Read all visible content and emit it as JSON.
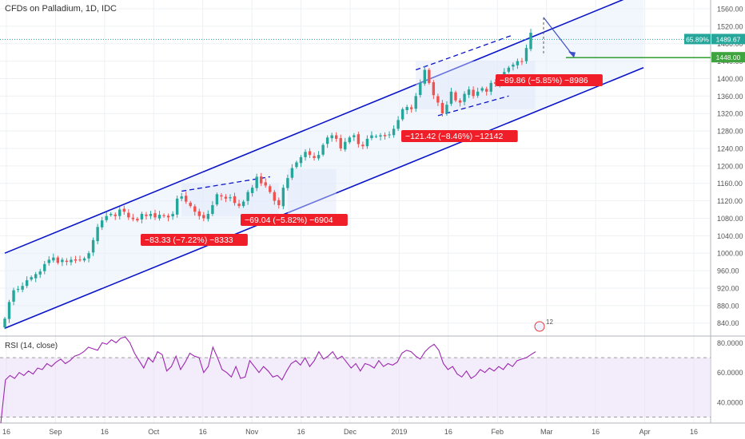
{
  "chart_title": "CFDs on Palladium, 1D, IDC",
  "rsi_title": "RSI (14, close)",
  "colors": {
    "up": "#26a69a",
    "down": "#ef5350",
    "channel": "#0a14c8",
    "rsi_line": "#9c27b0",
    "rsi_band": "#e9ddf6",
    "label_bg": "#f01e28"
  },
  "chart_data": [
    {
      "type": "candlestick",
      "yticks": [
        840,
        880,
        920,
        960,
        1000,
        1040,
        1080,
        1120,
        1160,
        1200,
        1240,
        1280,
        1320,
        1360,
        1400,
        1440,
        1480,
        1520,
        1560
      ],
      "ylim": [
        812,
        1580
      ],
      "x_tick_labels": [
        "16",
        "Sep",
        "16",
        "Oct",
        "16",
        "Nov",
        "16",
        "Dec",
        "2019",
        "16",
        "Feb",
        "Mar",
        "16",
        "Apr",
        "16"
      ],
      "price_markers": [
        {
          "value": 1489.67,
          "text": "1489.67",
          "change": "65.89%"
        },
        {
          "value": 1448.0,
          "text": "1448.00"
        }
      ],
      "measure_labels": [
        {
          "text": "−83.33 (−7.22%) −8333",
          "anchor_price": 1052
        },
        {
          "text": "−69.04 (−5.82%) −6904",
          "anchor_price": 1092
        },
        {
          "text": "−121.42 (−8.46%) −12142",
          "anchor_price": 1297
        },
        {
          "text": "−89.86 (−5.85%) −8986",
          "anchor_price": 1418
        }
      ],
      "events_badge": "12",
      "closes": [
        850,
        888,
        915,
        918,
        925,
        938,
        945,
        952,
        958,
        975,
        985,
        990,
        978,
        985,
        980,
        985,
        983,
        985,
        988,
        1000,
        1030,
        1060,
        1075,
        1085,
        1090,
        1085,
        1100,
        1095,
        1082,
        1078,
        1075,
        1090,
        1085,
        1090,
        1082,
        1088,
        1085,
        1082,
        1090,
        1125,
        1130,
        1118,
        1108,
        1095,
        1085,
        1080,
        1090,
        1110,
        1135,
        1130,
        1125,
        1128,
        1115,
        1108,
        1118,
        1140,
        1150,
        1175,
        1160,
        1155,
        1140,
        1120,
        1110,
        1150,
        1172,
        1195,
        1208,
        1220,
        1232,
        1225,
        1218,
        1225,
        1248,
        1265,
        1270,
        1262,
        1240,
        1255,
        1265,
        1270,
        1250,
        1245,
        1262,
        1270,
        1268,
        1270,
        1268,
        1272,
        1285,
        1305,
        1330,
        1335,
        1330,
        1360,
        1390,
        1420,
        1390,
        1362,
        1345,
        1320,
        1340,
        1370,
        1350,
        1345,
        1365,
        1375,
        1360,
        1370,
        1378,
        1370,
        1390,
        1388,
        1400,
        1415,
        1425,
        1432,
        1440,
        1438,
        1470,
        1505
      ],
      "rsi": {
        "yticks": [
          40,
          60,
          80
        ],
        "upper": 70,
        "lower": 30,
        "ylim": [
          26,
          84
        ],
        "values": [
          26,
          55,
          58,
          56,
          60,
          58,
          61,
          59,
          63,
          62,
          66,
          64,
          67,
          69,
          66,
          68,
          71,
          72,
          74,
          77,
          76,
          75,
          80,
          79,
          82,
          80,
          83,
          84,
          80,
          73,
          68,
          63,
          70,
          67,
          74,
          72,
          61,
          64,
          71,
          62,
          67,
          73,
          71,
          70,
          60,
          64,
          77,
          70,
          62,
          60,
          57,
          64,
          56,
          57,
          68,
          64,
          60,
          64,
          61,
          57,
          58,
          55,
          61,
          66,
          68,
          65,
          70,
          64,
          68,
          74,
          69,
          71,
          74,
          69,
          71,
          67,
          63,
          66,
          61,
          66,
          65,
          63,
          68,
          64,
          66,
          65,
          67,
          73,
          75,
          74,
          71,
          69,
          74,
          77,
          79,
          75,
          66,
          62,
          64,
          59,
          57,
          61,
          56,
          58,
          62,
          60,
          63,
          61,
          64,
          62,
          66,
          64,
          68,
          69,
          70,
          72,
          74
        ]
      }
    }
  ]
}
